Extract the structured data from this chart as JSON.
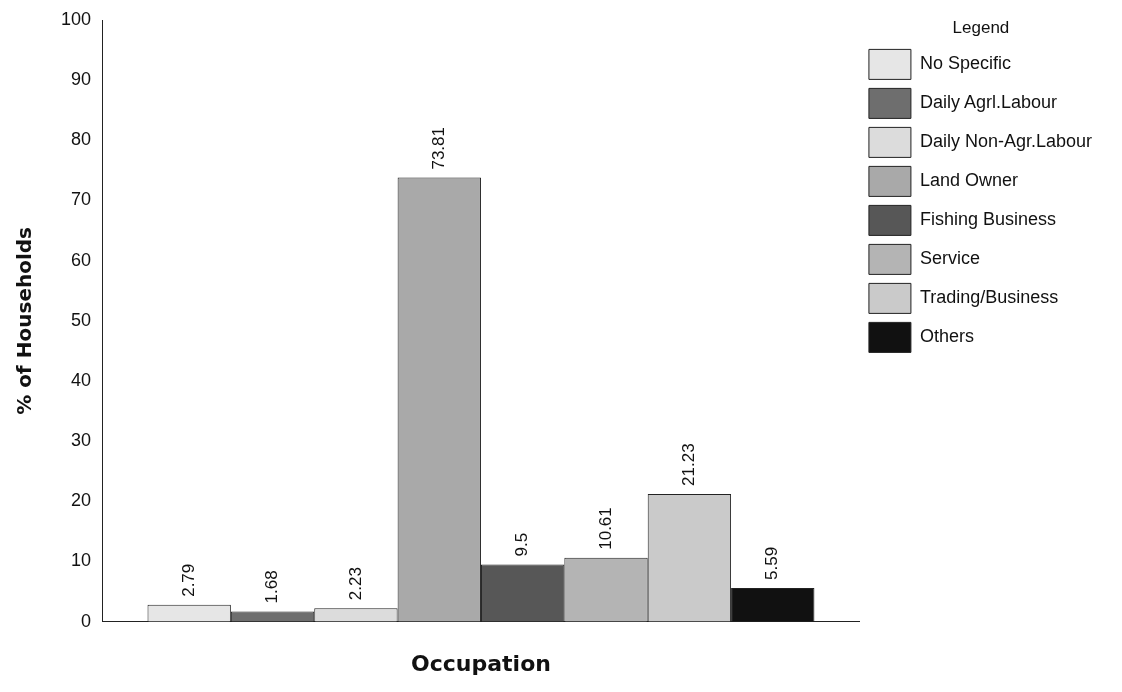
{
  "chart_data": {
    "type": "bar",
    "xlabel": "Occupation",
    "ylabel": "% of Households",
    "legend_title": "Legend",
    "categories": [
      null
    ],
    "series": [
      {
        "name": "No Specific",
        "color": "#e6e6e6",
        "values": [
          2.79
        ]
      },
      {
        "name": "Daily Agrl.Labour",
        "color": "#6e6e6e",
        "values": [
          1.68
        ]
      },
      {
        "name": "Daily Non-Agr.Labour",
        "color": "#dcdcdc",
        "values": [
          2.23
        ]
      },
      {
        "name": "Land Owner",
        "color": "#a9a9a9",
        "values": [
          73.81
        ]
      },
      {
        "name": "Fishing Business",
        "color": "#575757",
        "values": [
          9.5
        ]
      },
      {
        "name": "Service",
        "color": "#b4b4b4",
        "values": [
          10.61
        ]
      },
      {
        "name": "Trading/Business",
        "color": "#cacaca",
        "values": [
          21.23
        ]
      },
      {
        "name": "Others",
        "color": "#111111",
        "values": [
          5.59
        ]
      }
    ],
    "ylim": [
      0,
      100
    ],
    "yticks": [
      0,
      10,
      20,
      30,
      40,
      50,
      60,
      70,
      80,
      90,
      100
    ],
    "grid": false,
    "legend": "right",
    "data_labels": true
  }
}
